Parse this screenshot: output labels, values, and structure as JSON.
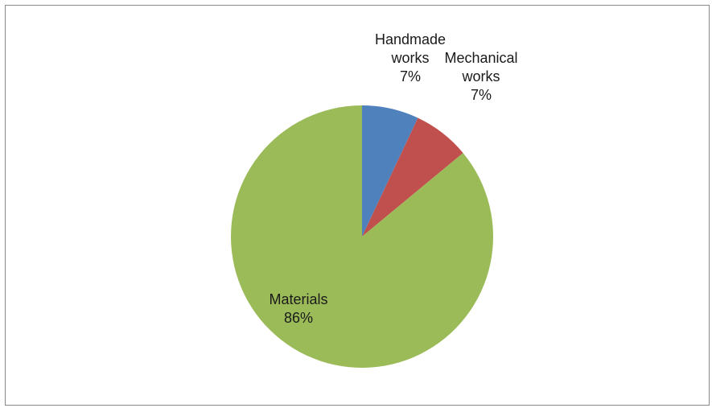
{
  "chart_data": {
    "type": "pie",
    "slices": [
      {
        "label_lines": [
          "Handmade",
          "works"
        ],
        "label": "Handmade works",
        "value": 7,
        "percent_text": "7%",
        "color": "#4f81bd"
      },
      {
        "label_lines": [
          "Mechanical",
          "works"
        ],
        "label": "Mechanical works",
        "value": 7,
        "percent_text": "7%",
        "color": "#c0504d"
      },
      {
        "label_lines": [
          "Materials"
        ],
        "label": "Materials",
        "value": 86,
        "percent_text": "86%",
        "color": "#9bbb59"
      }
    ],
    "start_angle_deg": 0,
    "direction": "clockwise",
    "legend": "none"
  }
}
